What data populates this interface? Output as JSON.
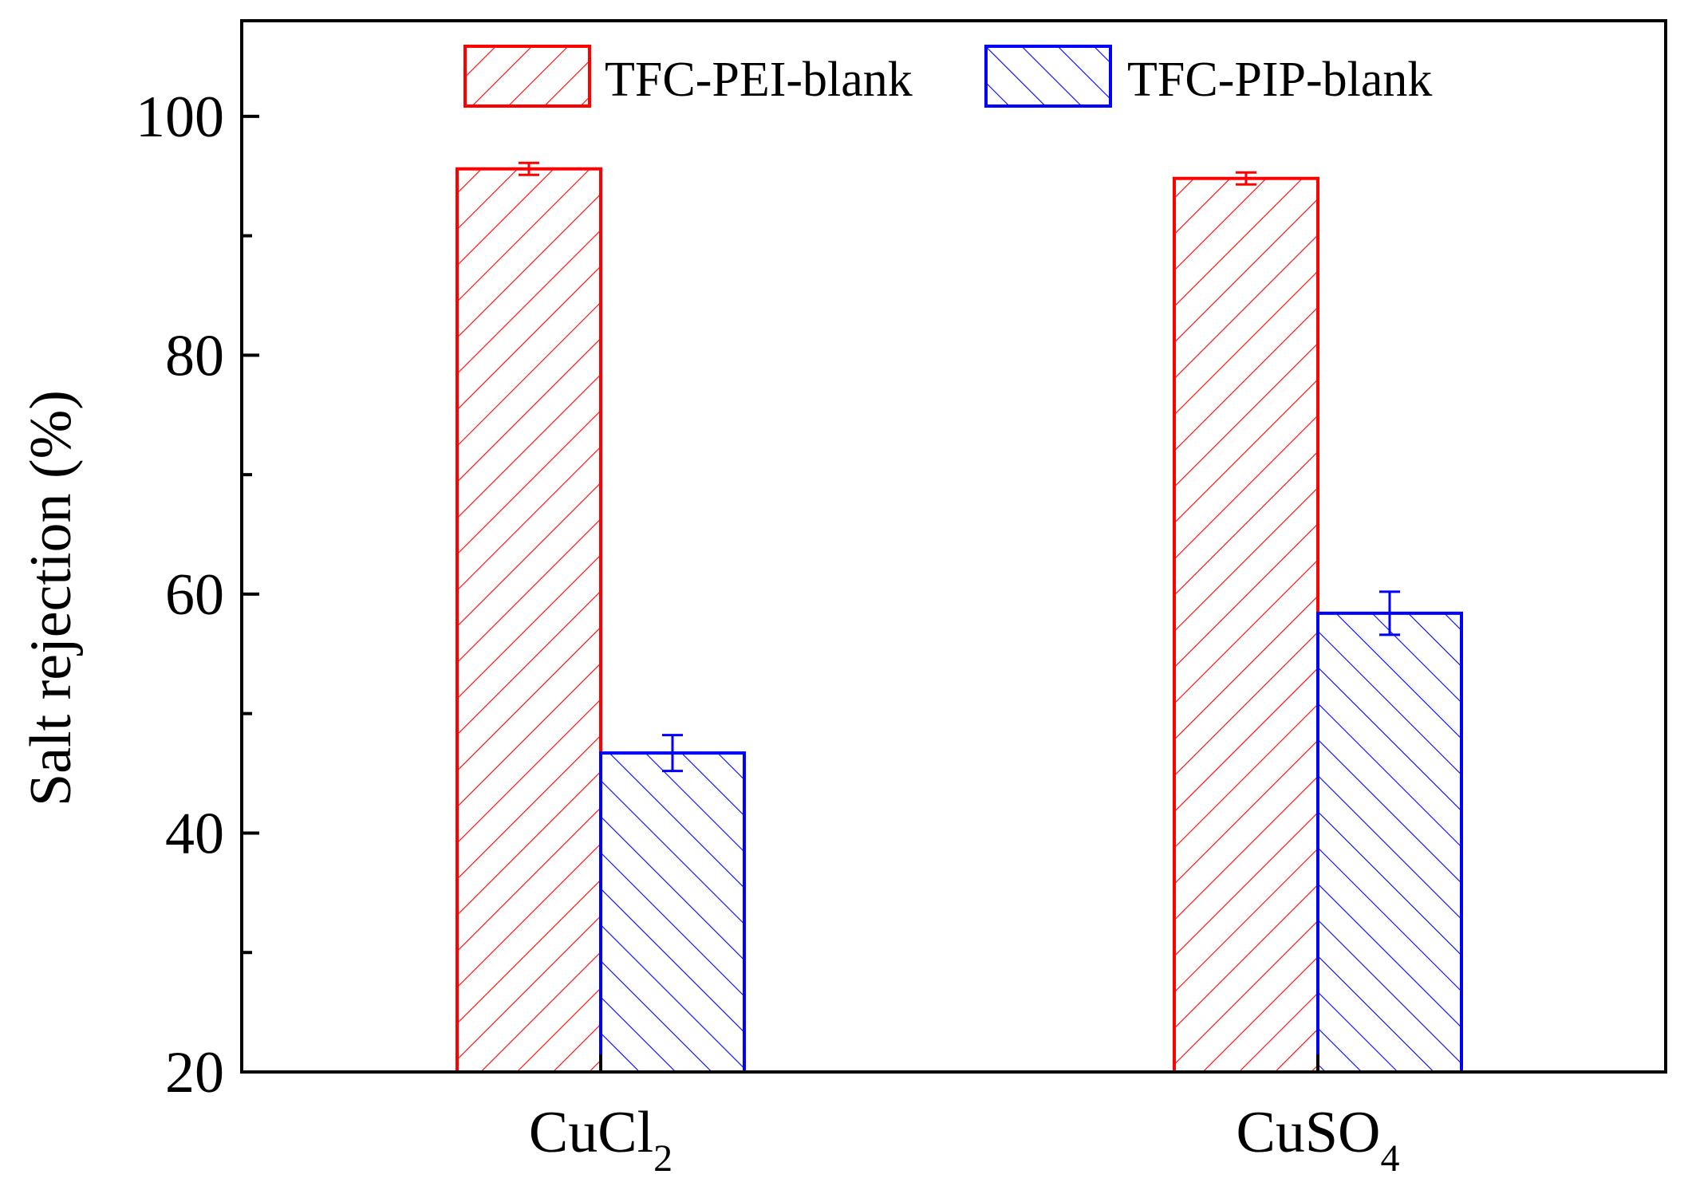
{
  "chart_data": {
    "type": "bar",
    "title": "",
    "xlabel": "",
    "ylabel": "Salt rejection (%)",
    "ylim": [
      20,
      108
    ],
    "yticks_major": [
      20,
      40,
      60,
      80,
      100
    ],
    "yticks_minor": [
      30,
      50,
      70,
      90
    ],
    "categories": [
      {
        "base": "CuCl",
        "sub": "2"
      },
      {
        "base": "CuSO",
        "sub": "4"
      }
    ],
    "series": [
      {
        "name": "TFC-PEI-blank",
        "color": "#ff0000",
        "hatch": "forward",
        "values": [
          95.6,
          94.8
        ],
        "errors": [
          0.5,
          0.5
        ]
      },
      {
        "name": "TFC-PIP-blank",
        "color": "#0000ff",
        "hatch": "backward",
        "values": [
          46.7,
          58.4
        ],
        "errors": [
          1.5,
          1.8
        ]
      }
    ],
    "legend_position": "top-center"
  }
}
